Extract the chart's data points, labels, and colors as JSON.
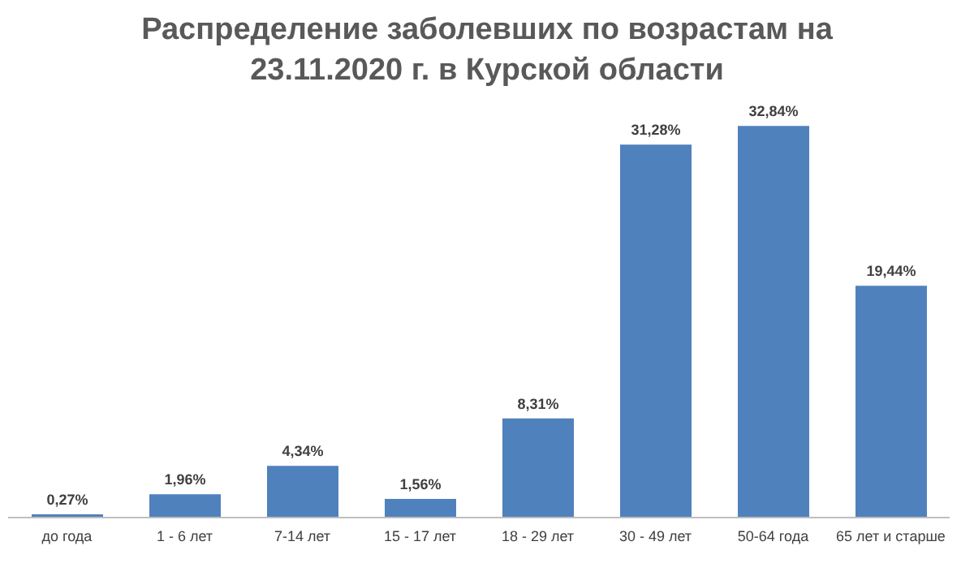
{
  "chart_data": {
    "type": "bar",
    "title": "Распределение заболевших по возрастам на 23.11.2020 г. в Курской области",
    "categories": [
      "до года",
      "1 - 6 лет",
      "7-14 лет",
      "15 - 17 лет",
      "18 - 29 лет",
      "30 - 49 лет",
      "50-64 года",
      "65 лет и старше"
    ],
    "values": [
      0.27,
      1.96,
      4.34,
      1.56,
      8.31,
      31.28,
      32.84,
      19.44
    ],
    "value_labels": [
      "0,27%",
      "1,96%",
      "4,34%",
      "1,56%",
      "8,31%",
      "31,28%",
      "32,84%",
      "19,44%"
    ],
    "color": "#4f81bd",
    "grid": false,
    "legend": false
  }
}
